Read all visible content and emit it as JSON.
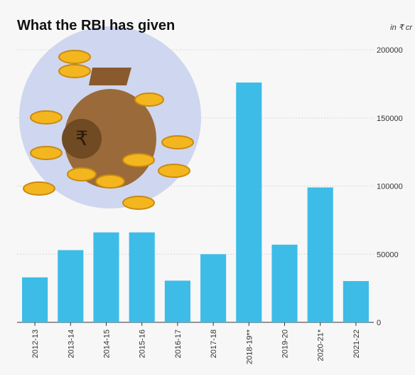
{
  "chart_data": {
    "type": "bar",
    "title": "What the RBI has given",
    "unit_label": "in ₹ cr",
    "categories": [
      "2012-13",
      "2013-14",
      "2014-15",
      "2015-16",
      "2016-17",
      "2017-18",
      "2018-19**",
      "2019-20",
      "2020-21*",
      "2021-22"
    ],
    "values": [
      33000,
      53000,
      66000,
      66000,
      30600,
      50000,
      176000,
      57000,
      99000,
      30300
    ],
    "color": "#3dbce8",
    "ylim": [
      0,
      200000
    ],
    "yticks": [
      0,
      50000,
      100000,
      150000,
      200000
    ],
    "grid": true
  }
}
